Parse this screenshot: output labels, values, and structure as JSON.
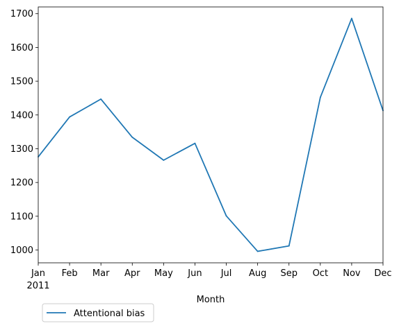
{
  "chart_data": {
    "type": "line",
    "categories": [
      "Jan",
      "Feb",
      "Mar",
      "Apr",
      "May",
      "Jun",
      "Jul",
      "Aug",
      "Sep",
      "Oct",
      "Nov",
      "Dec"
    ],
    "year_label": "2011",
    "series": [
      {
        "name": "Attentional bias",
        "values": [
          1276,
          1394,
          1447,
          1334,
          1266,
          1316,
          1101,
          996,
          1012,
          1452,
          1686,
          1413
        ],
        "color": "#1f77b4"
      }
    ],
    "xlabel": "Month",
    "ylabel": "",
    "ylim": [
      962,
      1720
    ],
    "yticks": [
      1000,
      1100,
      1200,
      1300,
      1400,
      1500,
      1600,
      1700
    ],
    "grid": false,
    "legend_position": "below the plot, left"
  }
}
